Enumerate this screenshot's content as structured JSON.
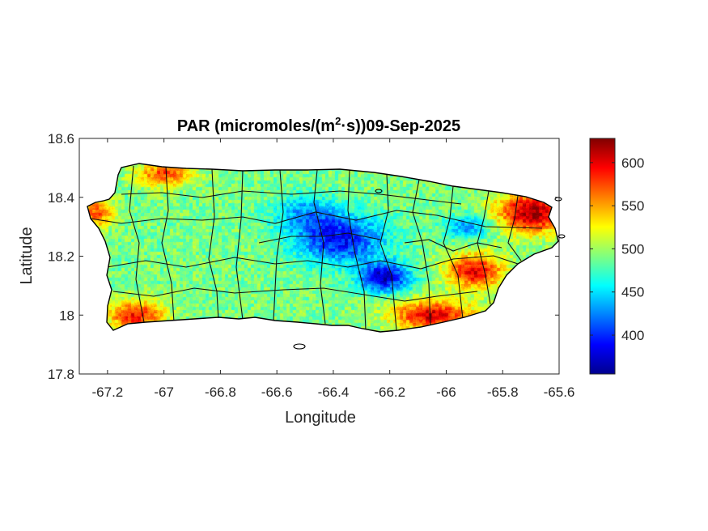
{
  "figure": {
    "title_main": "PAR (micromoles/(m",
    "title_sup": "2",
    "title_rest": "·s))09-Sep-2025",
    "xlabel": "Longitude",
    "ylabel": "Latitude"
  },
  "map_axes": {
    "xlim": [
      -67.3,
      -65.6
    ],
    "ylim": [
      17.8,
      18.6
    ],
    "xticks": [
      {
        "value": -67.2,
        "label": "-67.2"
      },
      {
        "value": -67.0,
        "label": "-67"
      },
      {
        "value": -66.8,
        "label": "-66.8"
      },
      {
        "value": -66.6,
        "label": "-66.6"
      },
      {
        "value": -66.4,
        "label": "-66.4"
      },
      {
        "value": -66.2,
        "label": "-66.2"
      },
      {
        "value": -66.0,
        "label": "-66"
      },
      {
        "value": -65.8,
        "label": "-65.8"
      },
      {
        "value": -65.6,
        "label": "-65.6"
      }
    ],
    "yticks": [
      {
        "value": 17.8,
        "label": "17.8"
      },
      {
        "value": 18.0,
        "label": "18"
      },
      {
        "value": 18.2,
        "label": "18.2"
      },
      {
        "value": 18.4,
        "label": "18.4"
      },
      {
        "value": 18.6,
        "label": "18.6"
      }
    ]
  },
  "colorbar": {
    "colormap": "jet",
    "clim": [
      355,
      628
    ],
    "ticks": [
      {
        "value": 400,
        "label": "400"
      },
      {
        "value": 450,
        "label": "450"
      },
      {
        "value": 500,
        "label": "500"
      },
      {
        "value": 550,
        "label": "550"
      },
      {
        "value": 600,
        "label": "600"
      }
    ]
  },
  "chart_data": {
    "type": "heatmap",
    "variable": "PAR",
    "units": "micromoles/(m2·s)",
    "date": "09-Sep-2025",
    "region": "Puerto Rico",
    "xlim": [
      -67.3,
      -65.6
    ],
    "ylim": [
      17.8,
      18.6
    ],
    "clim": [
      355,
      628
    ],
    "grid": false,
    "field_features": [
      {
        "feature": "low",
        "lon": -66.38,
        "lat": 18.26,
        "value": 390,
        "spread_lon": 0.16,
        "spread_lat": 0.08
      },
      {
        "feature": "low",
        "lon": -66.22,
        "lat": 18.13,
        "value": 375,
        "spread_lon": 0.09,
        "spread_lat": 0.05
      },
      {
        "feature": "low",
        "lon": -65.92,
        "lat": 18.3,
        "value": 430,
        "spread_lon": 0.08,
        "spread_lat": 0.04
      },
      {
        "feature": "low",
        "lon": -66.5,
        "lat": 18.35,
        "value": 440,
        "spread_lon": 0.12,
        "spread_lat": 0.06
      },
      {
        "feature": "high",
        "lon": -65.7,
        "lat": 18.35,
        "value": 620,
        "spread_lon": 0.12,
        "spread_lat": 0.07
      },
      {
        "feature": "high",
        "lon": -65.9,
        "lat": 18.15,
        "value": 600,
        "spread_lon": 0.1,
        "spread_lat": 0.06
      },
      {
        "feature": "high",
        "lon": -66.05,
        "lat": 18.0,
        "value": 605,
        "spread_lon": 0.14,
        "spread_lat": 0.05
      },
      {
        "feature": "high",
        "lon": -67.1,
        "lat": 18.0,
        "value": 590,
        "spread_lon": 0.1,
        "spread_lat": 0.05
      },
      {
        "feature": "high",
        "lon": -67.0,
        "lat": 18.48,
        "value": 575,
        "spread_lon": 0.1,
        "spread_lat": 0.04
      },
      {
        "feature": "high",
        "lon": -67.24,
        "lat": 18.35,
        "value": 570,
        "spread_lon": 0.06,
        "spread_lat": 0.05
      }
    ],
    "background_value": 490
  }
}
